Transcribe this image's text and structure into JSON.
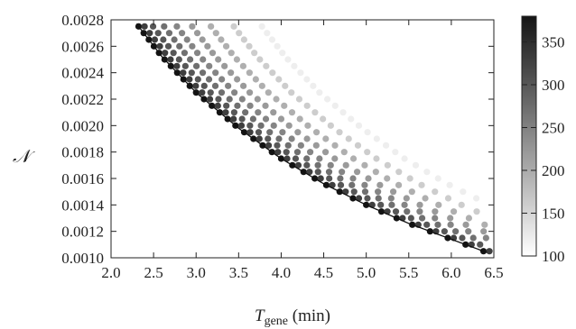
{
  "chart_data": {
    "type": "scatter",
    "title": "",
    "xlabel": {
      "main": "T",
      "subscript": "gene",
      "unit": " (min)"
    },
    "ylabel": "𝒩",
    "xlim": [
      2.0,
      6.5
    ],
    "ylim": [
      0.001,
      0.0028
    ],
    "xticks": [
      "2.0",
      "2.5",
      "3.0",
      "3.5",
      "4.0",
      "4.5",
      "5.0",
      "5.5",
      "6.0",
      "6.5"
    ],
    "yticks": [
      "0.0010",
      "0.0012",
      "0.0014",
      "0.0016",
      "0.0018",
      "0.0020",
      "0.0022",
      "0.0024",
      "0.0026",
      "0.0028"
    ],
    "colorbar": {
      "range": [
        100,
        380
      ],
      "ticks": [
        "100",
        "150",
        "200",
        "250",
        "300",
        "350"
      ],
      "colormap": "white-to-black"
    },
    "boundary_curve": {
      "description_free": true,
      "x": [
        2.3,
        2.6,
        3.0,
        3.5,
        4.0,
        4.5,
        5.0,
        5.5,
        6.0,
        6.42
      ],
      "y": [
        0.00277,
        0.00252,
        0.00225,
        0.00198,
        0.00175,
        0.00156,
        0.0014,
        0.00126,
        0.00114,
        0.00104
      ]
    },
    "point_grid": {
      "rows": 9,
      "row_offsets": [
        0.0,
        0.07,
        0.17,
        0.3,
        0.45,
        0.63,
        0.85,
        1.12,
        1.45
      ],
      "row_colorbar_values": [
        380,
        330,
        300,
        270,
        245,
        220,
        195,
        160,
        120
      ],
      "y_step": 5e-05
    }
  }
}
